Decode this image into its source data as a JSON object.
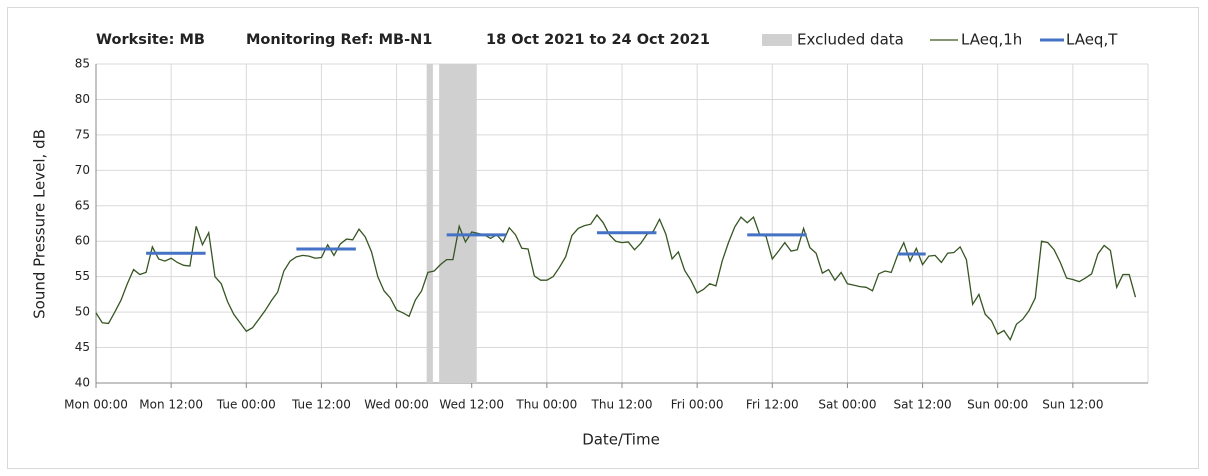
{
  "chart_data": {
    "type": "line",
    "title_parts": [
      "Worksite: MB",
      "Monitoring Ref: MB-N1",
      "18 Oct 2021 to 24 Oct 2021"
    ],
    "xlabel": "Date/Time",
    "ylabel": "Sound Pressure Level, dB",
    "xlim": [
      0,
      168
    ],
    "xticks": [
      {
        "value": 0,
        "label": "Mon 00:00"
      },
      {
        "value": 12,
        "label": "Mon 12:00"
      },
      {
        "value": 24,
        "label": "Tue 00:00"
      },
      {
        "value": 36,
        "label": "Tue 12:00"
      },
      {
        "value": 48,
        "label": "Wed 00:00"
      },
      {
        "value": 60,
        "label": "Wed 12:00"
      },
      {
        "value": 72,
        "label": "Thu 00:00"
      },
      {
        "value": 84,
        "label": "Thu 12:00"
      },
      {
        "value": 96,
        "label": "Fri 00:00"
      },
      {
        "value": 108,
        "label": "Fri 12:00"
      },
      {
        "value": 120,
        "label": "Sat 00:00"
      },
      {
        "value": 132,
        "label": "Sat 12:00"
      },
      {
        "value": 144,
        "label": "Sun 00:00"
      },
      {
        "value": 156,
        "label": "Sun 12:00"
      }
    ],
    "ylim": [
      40,
      85
    ],
    "yticks": [
      40,
      45,
      50,
      55,
      60,
      65,
      70,
      75,
      80,
      85
    ],
    "grid": true,
    "excluded_label": "Excluded data",
    "excluded_color": "#d0d0d0",
    "excluded": [
      [
        52.8,
        53.8
      ],
      [
        54.8,
        60.8
      ]
    ],
    "series": [
      {
        "name": "LAeq,1h",
        "color": "#375623",
        "x": [
          0,
          1,
          2,
          3,
          4,
          5,
          6,
          7,
          8,
          9,
          10,
          11,
          12,
          13,
          14,
          15,
          16,
          17,
          18,
          19,
          20,
          21,
          22,
          23,
          24,
          25,
          26,
          27,
          28,
          29,
          30,
          31,
          32,
          33,
          34,
          35,
          36,
          37,
          38,
          39,
          40,
          41,
          42,
          43,
          44,
          45,
          46,
          47,
          48,
          49,
          50,
          51,
          52,
          53,
          54,
          55,
          56,
          57,
          58,
          59,
          60,
          61,
          62,
          63,
          64,
          65,
          66,
          67,
          68,
          69,
          70,
          71,
          72,
          73,
          74,
          75,
          76,
          77,
          78,
          79,
          80,
          81,
          82,
          83,
          84,
          85,
          86,
          87,
          88,
          89,
          90,
          91,
          92,
          93,
          94,
          95,
          96,
          97,
          98,
          99,
          100,
          101,
          102,
          103,
          104,
          105,
          106,
          107,
          108,
          109,
          110,
          111,
          112,
          113,
          114,
          115,
          116,
          117,
          118,
          119,
          120,
          121,
          122,
          123,
          124,
          125,
          126,
          127,
          128,
          129,
          130,
          131,
          132,
          133,
          134,
          135,
          136,
          137,
          138,
          139,
          140,
          141,
          142,
          143,
          144,
          145,
          146,
          147,
          148,
          149,
          150,
          151,
          152,
          153,
          154,
          155,
          156,
          157,
          158,
          159,
          160,
          161,
          162,
          163,
          164,
          165,
          166
        ],
        "values": [
          49.9,
          48.5,
          48.4,
          50,
          51.7,
          54,
          56,
          55.3,
          55.6,
          59.2,
          57.5,
          57.2,
          57.6,
          57,
          56.6,
          56.5,
          62.1,
          59.5,
          61.2,
          55,
          54,
          51.5,
          49.7,
          48.5,
          47.3,
          47.8,
          49,
          50.2,
          51.6,
          52.8,
          55.8,
          57.2,
          57.8,
          58,
          57.9,
          57.6,
          57.7,
          59.5,
          58,
          59.6,
          60.3,
          60.2,
          61.7,
          60.6,
          58.5,
          55,
          53,
          52,
          50.3,
          49.9,
          49.4,
          51.7,
          53,
          55.6,
          55.8,
          56.7,
          57.4,
          57.4,
          62.1,
          59.9,
          61.3,
          61.1,
          60.9,
          60.4,
          60.9,
          59.9,
          61.9,
          60.9,
          59,
          58.9,
          55.1,
          54.5,
          54.5,
          55,
          56.3,
          57.8,
          60.8,
          61.8,
          62.2,
          62.4,
          63.7,
          62.6,
          60.9,
          60,
          59.8,
          59.9,
          58.8,
          59.7,
          61,
          61.4,
          63.1,
          61,
          57.5,
          58.5,
          55.9,
          54.5,
          52.7,
          53.2,
          54,
          53.7,
          57.2,
          59.8,
          62,
          63.4,
          62.6,
          63.4,
          60.9,
          60.7,
          57.5,
          58.6,
          59.8,
          58.6,
          58.8,
          61.8,
          59.1,
          58.3,
          55.5,
          56,
          54.5,
          55.6,
          54,
          53.8,
          53.6,
          53.5,
          53,
          55.4,
          55.8,
          55.6,
          58,
          59.8,
          57.2,
          59,
          56.7,
          57.9,
          58,
          57,
          58.3,
          58.4,
          59.2,
          57.4,
          51.1,
          52.5,
          49.7,
          48.8,
          46.9,
          47.4,
          46.1,
          48.3,
          49,
          50.2,
          52,
          60,
          59.8,
          58.8,
          57,
          54.8,
          54.6,
          54.3,
          54.8,
          55.4,
          58.2,
          59.4,
          58.7,
          53.5,
          55.3,
          55.3,
          52.1
        ]
      },
      {
        "name": "LAeq,T",
        "color": "#4472c4",
        "segments": [
          {
            "x": [
              8,
              17.5
            ],
            "value": 58.3
          },
          {
            "x": [
              32,
              41.5
            ],
            "value": 58.9
          },
          {
            "x": [
              56,
              65.5
            ],
            "value": 60.9
          },
          {
            "x": [
              80,
              89.5
            ],
            "value": 61.2
          },
          {
            "x": [
              104,
              113.5
            ],
            "value": 60.9
          },
          {
            "x": [
              128,
              132.5
            ],
            "value": 58.2
          }
        ]
      }
    ]
  }
}
